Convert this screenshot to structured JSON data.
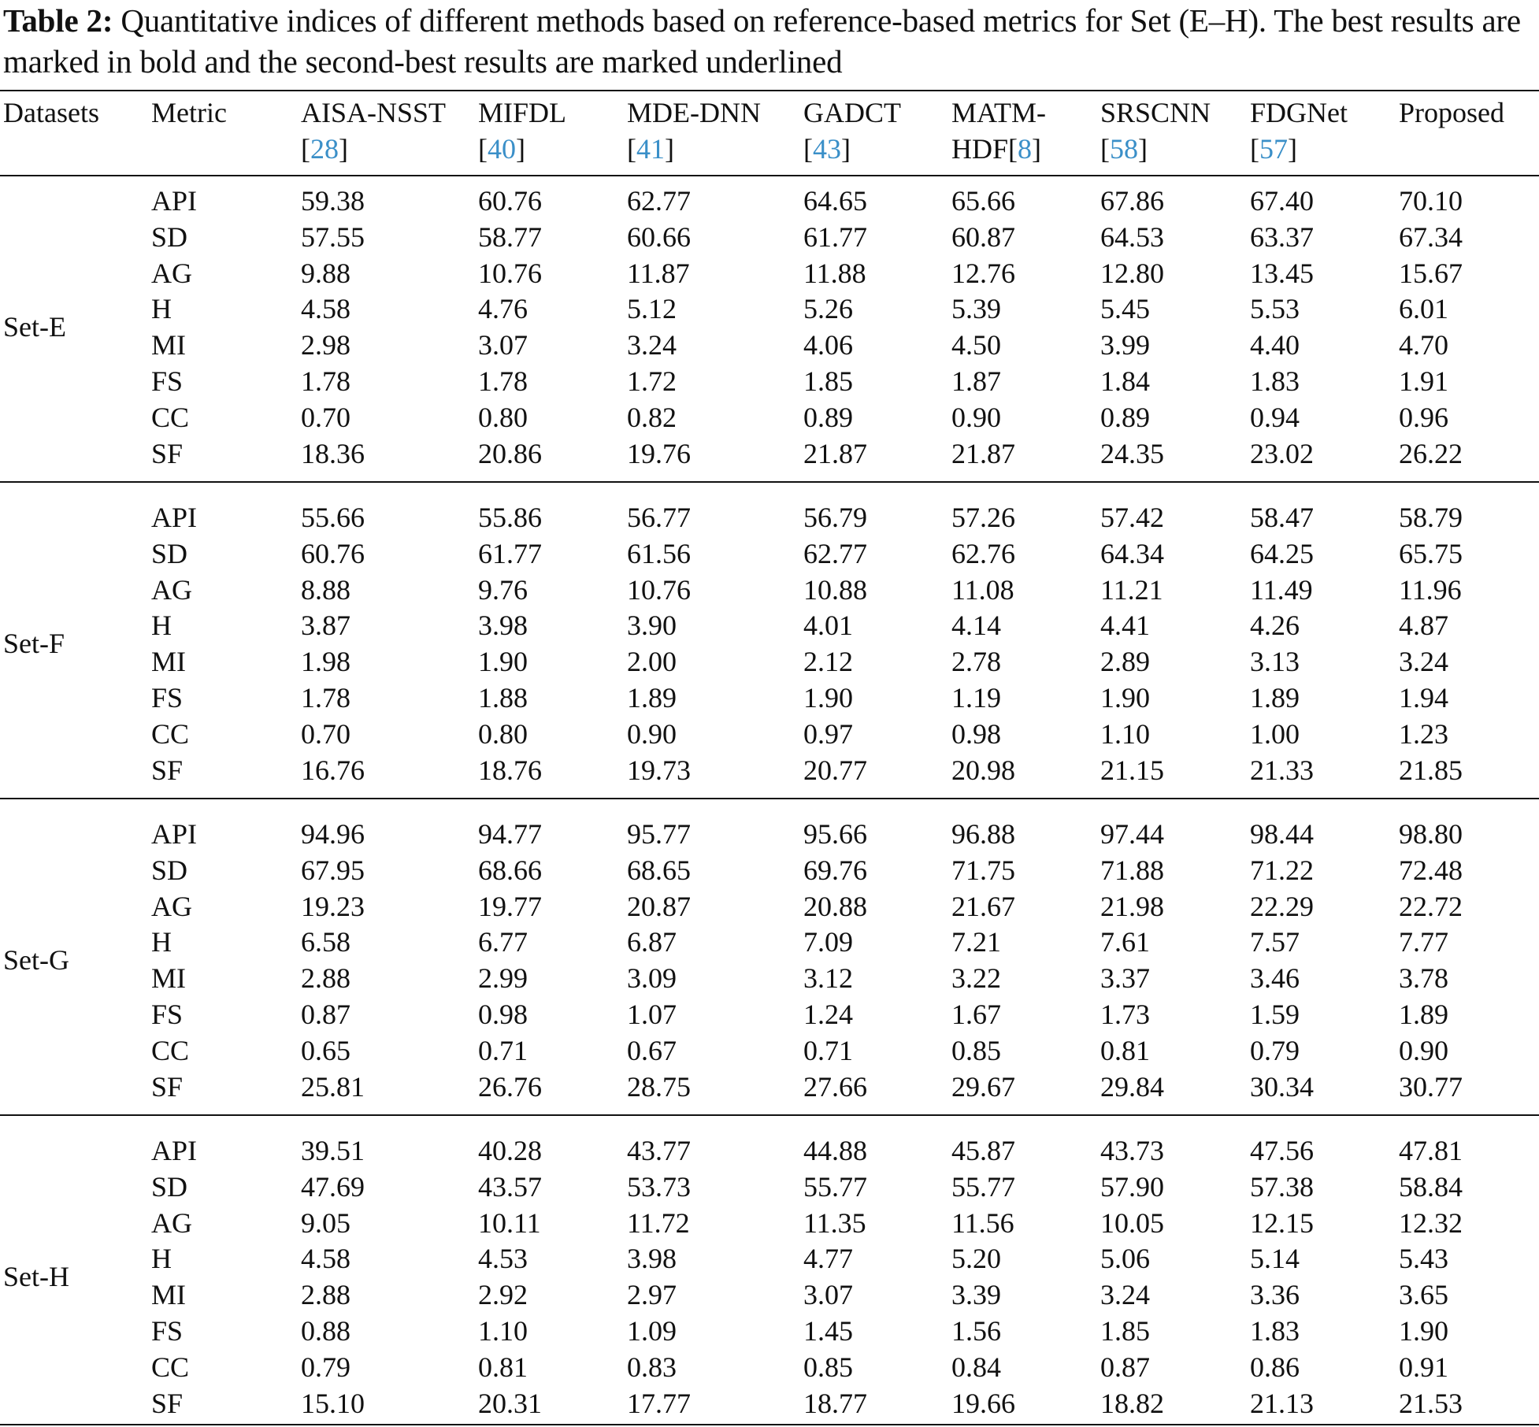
{
  "caption": {
    "label": "Table 2:",
    "text": " Quantitative indices of different methods based on reference-based metrics for Set (E–H). The best results are marked in bold and the second-best results are marked underlined"
  },
  "colors": {
    "reference_link": "#3a8fc8",
    "rule": "#111111"
  },
  "headers": {
    "datasets": "Datasets",
    "metric": "Metric",
    "methods": [
      {
        "name": "AISA-NSST",
        "ref": "28"
      },
      {
        "name": "MIFDL",
        "ref": "40"
      },
      {
        "name": "MDE-DNN",
        "ref": "41"
      },
      {
        "name": "GADCT",
        "ref": "43"
      },
      {
        "name": "MATM-HDF",
        "ref": "8"
      },
      {
        "name": "SRSCNN",
        "ref": "58"
      },
      {
        "name": "FDGNet",
        "ref": "57"
      },
      {
        "name": "Proposed",
        "ref": ""
      }
    ]
  },
  "groups": [
    {
      "name": "Set-E",
      "rows": [
        {
          "metric": "API",
          "values": [
            "59.38",
            "60.76",
            "62.77",
            "64.65",
            "65.66",
            "67.86",
            "67.40",
            "70.10"
          ]
        },
        {
          "metric": "SD",
          "values": [
            "57.55",
            "58.77",
            "60.66",
            "61.77",
            "60.87",
            "64.53",
            "63.37",
            "67.34"
          ]
        },
        {
          "metric": "AG",
          "values": [
            "9.88",
            "10.76",
            "11.87",
            "11.88",
            "12.76",
            "12.80",
            "13.45",
            "15.67"
          ]
        },
        {
          "metric": "H",
          "values": [
            "4.58",
            "4.76",
            "5.12",
            "5.26",
            "5.39",
            "5.45",
            "5.53",
            "6.01"
          ]
        },
        {
          "metric": "MI",
          "values": [
            "2.98",
            "3.07",
            "3.24",
            "4.06",
            "4.50",
            "3.99",
            "4.40",
            "4.70"
          ]
        },
        {
          "metric": "FS",
          "values": [
            "1.78",
            "1.78",
            "1.72",
            "1.85",
            "1.87",
            "1.84",
            "1.83",
            "1.91"
          ]
        },
        {
          "metric": "CC",
          "values": [
            "0.70",
            "0.80",
            "0.82",
            "0.89",
            "0.90",
            "0.89",
            "0.94",
            "0.96"
          ]
        },
        {
          "metric": "SF",
          "values": [
            "18.36",
            "20.86",
            "19.76",
            "21.87",
            "21.87",
            "24.35",
            "23.02",
            "26.22"
          ]
        }
      ]
    },
    {
      "name": "Set-F",
      "rows": [
        {
          "metric": "API",
          "values": [
            "55.66",
            "55.86",
            "56.77",
            "56.79",
            "57.26",
            "57.42",
            "58.47",
            "58.79"
          ]
        },
        {
          "metric": "SD",
          "values": [
            "60.76",
            "61.77",
            "61.56",
            "62.77",
            "62.76",
            "64.34",
            "64.25",
            "65.75"
          ]
        },
        {
          "metric": "AG",
          "values": [
            "8.88",
            "9.76",
            "10.76",
            "10.88",
            "11.08",
            "11.21",
            "11.49",
            "11.96"
          ]
        },
        {
          "metric": "H",
          "values": [
            "3.87",
            "3.98",
            "3.90",
            "4.01",
            "4.14",
            "4.41",
            "4.26",
            "4.87"
          ]
        },
        {
          "metric": "MI",
          "values": [
            "1.98",
            "1.90",
            "2.00",
            "2.12",
            "2.78",
            "2.89",
            "3.13",
            "3.24"
          ]
        },
        {
          "metric": "FS",
          "values": [
            "1.78",
            "1.88",
            "1.89",
            "1.90",
            "1.19",
            "1.90",
            "1.89",
            "1.94"
          ]
        },
        {
          "metric": "CC",
          "values": [
            "0.70",
            "0.80",
            "0.90",
            "0.97",
            "0.98",
            "1.10",
            "1.00",
            "1.23"
          ]
        },
        {
          "metric": "SF",
          "values": [
            "16.76",
            "18.76",
            "19.73",
            "20.77",
            "20.98",
            "21.15",
            "21.33",
            "21.85"
          ]
        }
      ]
    },
    {
      "name": "Set-G",
      "rows": [
        {
          "metric": "API",
          "values": [
            "94.96",
            "94.77",
            "95.77",
            "95.66",
            "96.88",
            "97.44",
            "98.44",
            "98.80"
          ]
        },
        {
          "metric": "SD",
          "values": [
            "67.95",
            "68.66",
            "68.65",
            "69.76",
            "71.75",
            "71.88",
            "71.22",
            "72.48"
          ]
        },
        {
          "metric": "AG",
          "values": [
            "19.23",
            "19.77",
            "20.87",
            "20.88",
            "21.67",
            "21.98",
            "22.29",
            "22.72"
          ]
        },
        {
          "metric": "H",
          "values": [
            "6.58",
            "6.77",
            "6.87",
            "7.09",
            "7.21",
            "7.61",
            "7.57",
            "7.77"
          ]
        },
        {
          "metric": "MI",
          "values": [
            "2.88",
            "2.99",
            "3.09",
            "3.12",
            "3.22",
            "3.37",
            "3.46",
            "3.78"
          ]
        },
        {
          "metric": "FS",
          "values": [
            "0.87",
            "0.98",
            "1.07",
            "1.24",
            "1.67",
            "1.73",
            "1.59",
            "1.89"
          ]
        },
        {
          "metric": "CC",
          "values": [
            "0.65",
            "0.71",
            "0.67",
            "0.71",
            "0.85",
            "0.81",
            "0.79",
            "0.90"
          ]
        },
        {
          "metric": "SF",
          "values": [
            "25.81",
            "26.76",
            "28.75",
            "27.66",
            "29.67",
            "29.84",
            "30.34",
            "30.77"
          ]
        }
      ]
    },
    {
      "name": "Set-H",
      "rows": [
        {
          "metric": "API",
          "values": [
            "39.51",
            "40.28",
            "43.77",
            "44.88",
            "45.87",
            "43.73",
            "47.56",
            "47.81"
          ]
        },
        {
          "metric": "SD",
          "values": [
            "47.69",
            "43.57",
            "53.73",
            "55.77",
            "55.77",
            "57.90",
            "57.38",
            "58.84"
          ]
        },
        {
          "metric": "AG",
          "values": [
            "9.05",
            "10.11",
            "11.72",
            "11.35",
            "11.56",
            "10.05",
            "12.15",
            "12.32"
          ]
        },
        {
          "metric": "H",
          "values": [
            "4.58",
            "4.53",
            "3.98",
            "4.77",
            "5.20",
            "5.06",
            "5.14",
            "5.43"
          ]
        },
        {
          "metric": "MI",
          "values": [
            "2.88",
            "2.92",
            "2.97",
            "3.07",
            "3.39",
            "3.24",
            "3.36",
            "3.65"
          ]
        },
        {
          "metric": "FS",
          "values": [
            "0.88",
            "1.10",
            "1.09",
            "1.45",
            "1.56",
            "1.85",
            "1.83",
            "1.90"
          ]
        },
        {
          "metric": "CC",
          "values": [
            "0.79",
            "0.81",
            "0.83",
            "0.85",
            "0.84",
            "0.87",
            "0.86",
            "0.91"
          ]
        },
        {
          "metric": "SF",
          "values": [
            "15.10",
            "20.31",
            "17.77",
            "18.77",
            "19.66",
            "18.82",
            "21.13",
            "21.53"
          ]
        }
      ]
    }
  ]
}
